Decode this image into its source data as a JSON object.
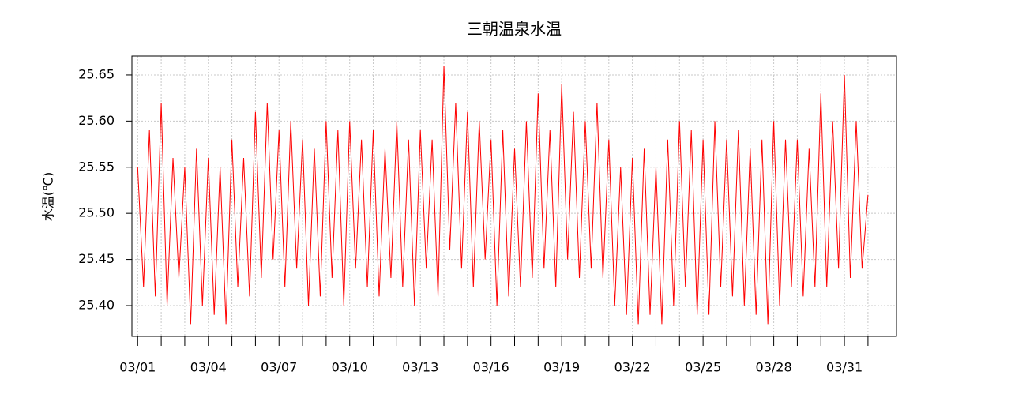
{
  "chart_data": {
    "type": "line",
    "title": "三朝温泉水温",
    "y_label": "水温(℃)",
    "x": [
      1,
      1.25,
      1.5,
      1.75,
      2,
      2.25,
      2.5,
      2.75,
      3,
      3.25,
      3.5,
      3.75,
      4,
      4.25,
      4.5,
      4.75,
      5,
      5.25,
      5.5,
      5.75,
      6,
      6.25,
      6.5,
      6.75,
      7,
      7.25,
      7.5,
      7.75,
      8,
      8.25,
      8.5,
      8.75,
      9,
      9.25,
      9.5,
      9.75,
      10,
      10.25,
      10.5,
      10.75,
      11,
      11.25,
      11.5,
      11.75,
      12,
      12.25,
      12.5,
      12.75,
      13,
      13.25,
      13.5,
      13.75,
      14,
      14.25,
      14.5,
      14.75,
      15,
      15.25,
      15.5,
      15.75,
      16,
      16.25,
      16.5,
      16.75,
      17,
      17.25,
      17.5,
      17.75,
      18,
      18.25,
      18.5,
      18.75,
      19,
      19.25,
      19.5,
      19.75,
      20,
      20.25,
      20.5,
      20.75,
      21,
      21.25,
      21.5,
      21.75,
      22,
      22.25,
      22.5,
      22.75,
      23,
      23.25,
      23.5,
      23.75,
      24,
      24.25,
      24.5,
      24.75,
      25,
      25.25,
      25.5,
      25.75,
      26,
      26.25,
      26.5,
      26.75,
      27,
      27.25,
      27.5,
      27.75,
      28,
      28.25,
      28.5,
      28.75,
      29,
      29.25,
      29.5,
      29.75,
      30,
      30.25,
      30.5,
      30.75,
      31,
      31.25,
      31.5,
      31.75,
      32
    ],
    "series": [
      {
        "name": "水温",
        "color": "#ff0000",
        "values": [
          25.55,
          25.42,
          25.59,
          25.41,
          25.62,
          25.4,
          25.56,
          25.43,
          25.55,
          25.38,
          25.57,
          25.4,
          25.56,
          25.39,
          25.55,
          25.38,
          25.58,
          25.42,
          25.56,
          25.41,
          25.61,
          25.43,
          25.62,
          25.45,
          25.59,
          25.42,
          25.6,
          25.44,
          25.58,
          25.4,
          25.57,
          25.41,
          25.6,
          25.43,
          25.59,
          25.4,
          25.6,
          25.44,
          25.58,
          25.42,
          25.59,
          25.41,
          25.57,
          25.43,
          25.6,
          25.42,
          25.58,
          25.4,
          25.59,
          25.44,
          25.58,
          25.41,
          25.66,
          25.46,
          25.62,
          25.44,
          25.61,
          25.42,
          25.6,
          25.45,
          25.58,
          25.4,
          25.59,
          25.41,
          25.57,
          25.42,
          25.6,
          25.43,
          25.63,
          25.44,
          25.59,
          25.42,
          25.64,
          25.45,
          25.61,
          25.43,
          25.6,
          25.44,
          25.62,
          25.43,
          25.58,
          25.4,
          25.55,
          25.39,
          25.56,
          25.38,
          25.57,
          25.39,
          25.55,
          25.38,
          25.58,
          25.4,
          25.6,
          25.42,
          25.59,
          25.39,
          25.58,
          25.39,
          25.6,
          25.42,
          25.58,
          25.41,
          25.59,
          25.4,
          25.57,
          25.39,
          25.58,
          25.38,
          25.6,
          25.4,
          25.58,
          25.42,
          25.58,
          25.41,
          25.57,
          25.42,
          25.63,
          25.42,
          25.6,
          25.44,
          25.65,
          25.43,
          25.6,
          25.44,
          25.52
        ]
      }
    ],
    "xlim": [
      0.756,
      33.21
    ],
    "xticks": [
      {
        "value": 1,
        "label": "03/01"
      },
      {
        "value": 4,
        "label": "03/04"
      },
      {
        "value": 7,
        "label": "03/07"
      },
      {
        "value": 10,
        "label": "03/10"
      },
      {
        "value": 13,
        "label": "03/13"
      },
      {
        "value": 16,
        "label": "03/16"
      },
      {
        "value": 19,
        "label": "03/19"
      },
      {
        "value": 22,
        "label": "03/22"
      },
      {
        "value": 25,
        "label": "03/25"
      },
      {
        "value": 28,
        "label": "03/28"
      },
      {
        "value": 31,
        "label": "03/31"
      }
    ],
    "xminorticks": [
      2,
      3,
      5,
      6,
      8,
      9,
      11,
      12,
      14,
      15,
      17,
      18,
      20,
      21,
      23,
      24,
      26,
      27,
      29,
      30,
      32
    ],
    "ylim": [
      25.3666,
      25.6705
    ],
    "yticks": [
      {
        "value": 25.4,
        "label": "25.40"
      },
      25.45,
      {
        "value": 25.5,
        "label": "25.50"
      },
      25.55,
      {
        "value": 25.6,
        "label": "25.60"
      },
      25.65
    ],
    "grid": true
  }
}
